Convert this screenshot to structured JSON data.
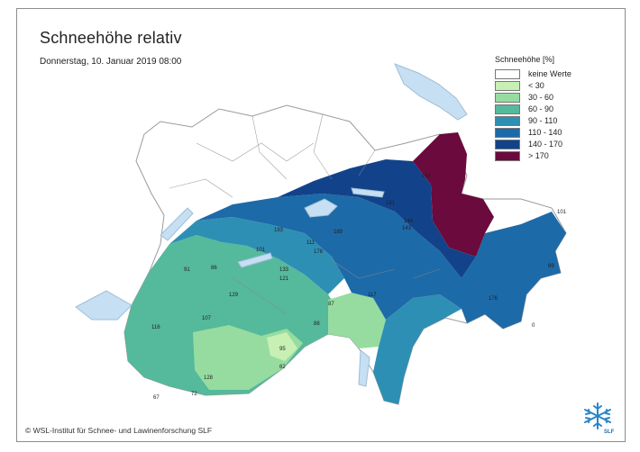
{
  "title": "Schneehöhe relativ",
  "subtitle": "Donnerstag, 10. Januar 2019 08:00",
  "copyright": "© WSL-Institut für Schnee- und Lawinenforschung SLF",
  "legend": {
    "title": "Schneehöhe [%]",
    "items": [
      {
        "label": "keine Werte",
        "color": "#ffffff"
      },
      {
        "label": "< 30",
        "color": "#c8f0b4"
      },
      {
        "label": "30 - 60",
        "color": "#96dca0"
      },
      {
        "label": "60 - 90",
        "color": "#55b99b"
      },
      {
        "label": "90 - 110",
        "color": "#2e8fb4"
      },
      {
        "label": "110 - 140",
        "color": "#1d6aa8"
      },
      {
        "label": "140 - 170",
        "color": "#12438a"
      },
      {
        "label": "> 170",
        "color": "#6b0a3c"
      }
    ]
  },
  "logo_text": "SLF",
  "stations": [
    {
      "id": "s1",
      "label": "101"
    },
    {
      "id": "s2",
      "label": "193"
    },
    {
      "id": "s3",
      "label": "111"
    },
    {
      "id": "s4",
      "label": "178"
    },
    {
      "id": "s5",
      "label": "189"
    },
    {
      "id": "s6",
      "label": "91"
    },
    {
      "id": "s7",
      "label": "86"
    },
    {
      "id": "s8",
      "label": "129"
    },
    {
      "id": "s9",
      "label": "107"
    },
    {
      "id": "s10",
      "label": "116"
    },
    {
      "id": "s11",
      "label": "87"
    },
    {
      "id": "s12",
      "label": "88"
    },
    {
      "id": "s13",
      "label": "95"
    },
    {
      "id": "s14",
      "label": "62"
    },
    {
      "id": "s15",
      "label": "128"
    },
    {
      "id": "s16",
      "label": "67"
    },
    {
      "id": "s17",
      "label": "72"
    },
    {
      "id": "s18",
      "label": "117"
    },
    {
      "id": "s19",
      "label": "154"
    },
    {
      "id": "s20",
      "label": "161"
    },
    {
      "id": "s21",
      "label": "143"
    },
    {
      "id": "s22",
      "label": "144"
    },
    {
      "id": "s23",
      "label": "101"
    },
    {
      "id": "s24",
      "label": "89"
    },
    {
      "id": "s25",
      "label": "0"
    },
    {
      "id": "s26",
      "label": "176"
    },
    {
      "id": "s27",
      "label": "133"
    },
    {
      "id": "s28",
      "label": "121"
    }
  ]
}
